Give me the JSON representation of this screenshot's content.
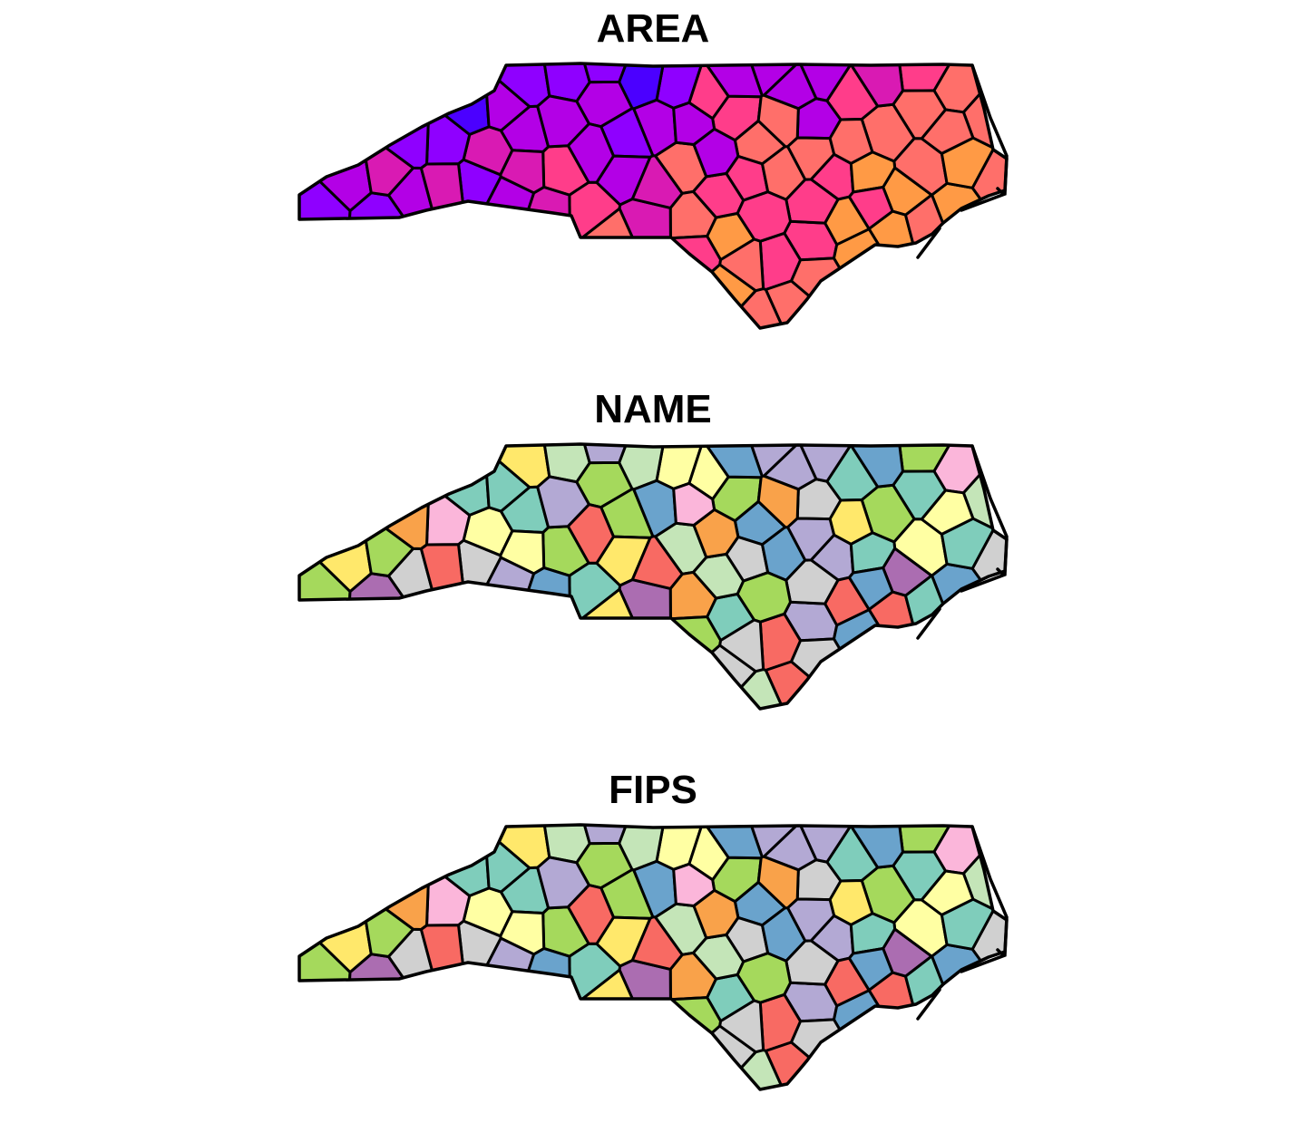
{
  "panels": [
    {
      "title": "AREA",
      "palette": [
        "#0000ee",
        "#4b00ff",
        "#8f00ff",
        "#b300e6",
        "#d91ab3",
        "#ff3d8a",
        "#ff6f6a",
        "#ff9a45",
        "#ffc628",
        "#ffff00"
      ]
    },
    {
      "title": "NAME",
      "palette": [
        "#7fcdbb",
        "#b3a9d4",
        "#ffffa3",
        "#6aa3cc",
        "#a5d95c",
        "#fbb6da",
        "#f86a63",
        "#f9a24a",
        "#d0d0d0",
        "#c4e5b8",
        "#ab6db1",
        "#ffe86b"
      ]
    },
    {
      "title": "FIPS",
      "palette": [
        "#7fcdbb",
        "#b3a9d4",
        "#ffffa3",
        "#6aa3cc",
        "#a5d95c",
        "#fbb6da",
        "#f86a63",
        "#f9a24a",
        "#d0d0d0",
        "#c4e5b8",
        "#ab6db1",
        "#ffe86b"
      ]
    }
  ]
}
